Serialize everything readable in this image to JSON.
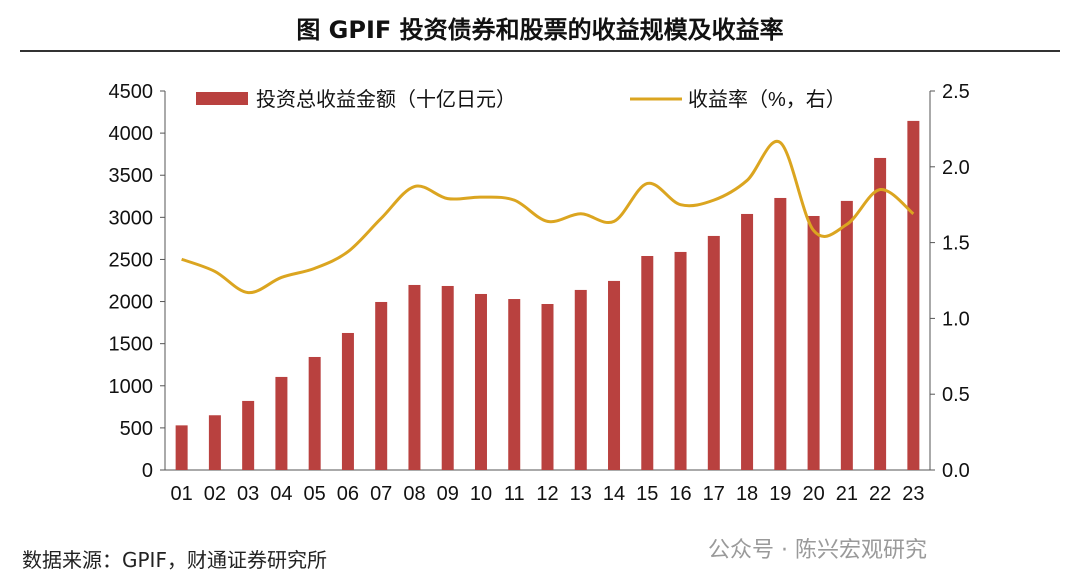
{
  "chart_data": {
    "type": "bar+line",
    "title": "图  GPIF 投资债券和股票的收益规模及收益率",
    "categories": [
      "01",
      "02",
      "03",
      "04",
      "05",
      "06",
      "07",
      "08",
      "09",
      "10",
      "11",
      "12",
      "13",
      "14",
      "15",
      "16",
      "17",
      "18",
      "19",
      "20",
      "21",
      "22",
      "23"
    ],
    "series": [
      {
        "name": "投资总收益金额（十亿日元）",
        "type": "bar",
        "axis": "left",
        "color": "#b9413f",
        "values": [
          530,
          650,
          820,
          1105,
          1342,
          1627,
          1995,
          2197,
          2185,
          2090,
          2030,
          1971,
          2138,
          2245,
          2541,
          2589,
          2779,
          3040,
          3230,
          3016,
          3195,
          3705,
          4145
        ]
      },
      {
        "name": "收益率（%，右）",
        "type": "line",
        "axis": "right",
        "color": "#dba520",
        "values": [
          1.39,
          1.31,
          1.17,
          1.27,
          1.33,
          1.44,
          1.66,
          1.87,
          1.79,
          1.8,
          1.78,
          1.64,
          1.69,
          1.64,
          1.89,
          1.75,
          1.78,
          1.91,
          2.16,
          1.58,
          1.62,
          1.85,
          1.69
        ]
      }
    ],
    "yleft": {
      "lim": [
        0,
        4500
      ],
      "ticks": [
        "0",
        "500",
        "1000",
        "1500",
        "2000",
        "2500",
        "3000",
        "3500",
        "4000",
        "4500"
      ]
    },
    "yright": {
      "lim": [
        0,
        2.5
      ],
      "ticks": [
        "0.0",
        "0.5",
        "1.0",
        "1.5",
        "2.0",
        "2.5"
      ]
    },
    "legend": "top"
  },
  "footer": {
    "source": "数据来源：GPIF，财通证券研究所",
    "watermark": "公众号 · 陈兴宏观研究"
  }
}
